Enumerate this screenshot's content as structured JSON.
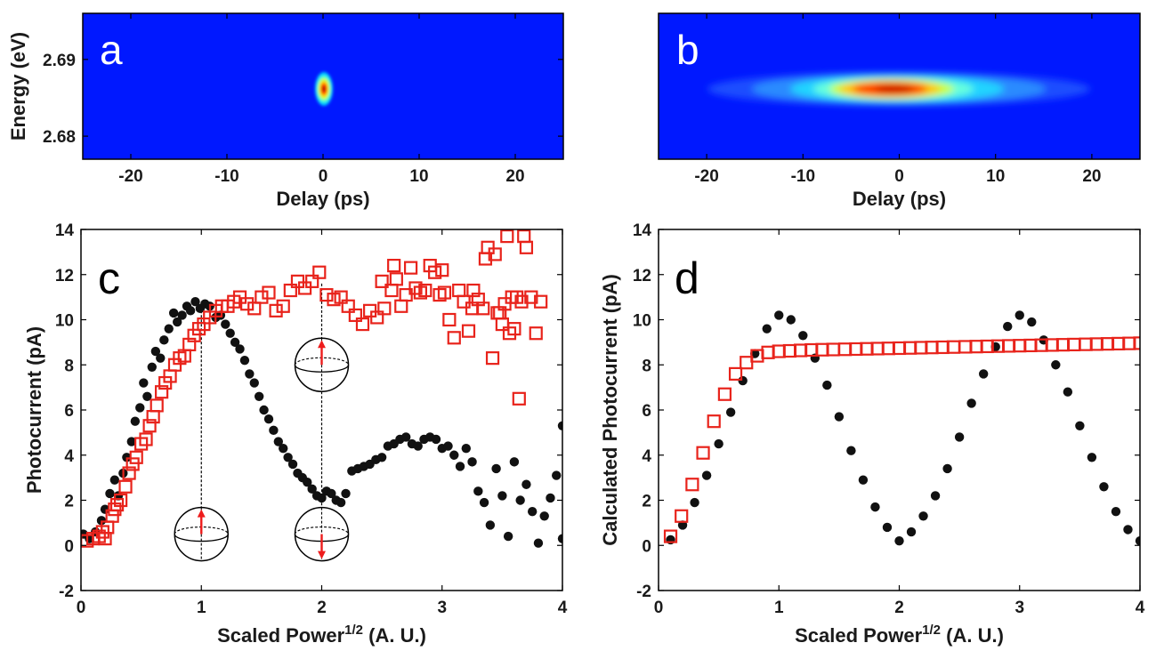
{
  "colors": {
    "dots": "#111111",
    "squares": "#e8231b",
    "arrow": "#ee1c1c",
    "heatmap_background": "#0018ff"
  },
  "chart_data": [
    {
      "panel": "a",
      "type": "heatmap",
      "xlabel": "Delay (ps)",
      "ylabel": "Energy (eV)",
      "xlim": [
        -25,
        25
      ],
      "ylim": [
        2.677,
        2.696
      ],
      "xticks": [
        "-20",
        "-10",
        "0",
        "10",
        "20"
      ],
      "yticks": [
        "2.68",
        "2.69"
      ],
      "spot": {
        "delay_center": 0,
        "energy_center": 2.686,
        "delay_width": 0.5,
        "energy_width": 0.0012
      }
    },
    {
      "panel": "b",
      "type": "heatmap",
      "xlabel": "Delay (ps)",
      "ylabel": "",
      "xlim": [
        -25,
        25
      ],
      "ylim": [
        2.677,
        2.696
      ],
      "xticks": [
        "-20",
        "-10",
        "0",
        "10",
        "20"
      ],
      "yticks": [],
      "spot": {
        "delay_center": 0,
        "energy_center": 2.686,
        "delay_width": 6,
        "energy_width": 0.0013
      }
    },
    {
      "panel": "c",
      "type": "scatter",
      "xlabel": "Scaled Power",
      "xlabel_sup": "1/2",
      "xlabel_suffix": " (A. U.)",
      "ylabel": "Photocurrent (pA)",
      "xlim": [
        0,
        4
      ],
      "ylim": [
        -2,
        14
      ],
      "xticks": [
        "0",
        "1",
        "2",
        "3",
        "4"
      ],
      "yticks": [
        "-2",
        "0",
        "2",
        "4",
        "6",
        "8",
        "10",
        "12",
        "14"
      ],
      "series": [
        {
          "name": "dots",
          "marker": "circle",
          "x": [
            0.02,
            0.07,
            0.12,
            0.17,
            0.2,
            0.24,
            0.28,
            0.31,
            0.35,
            0.38,
            0.42,
            0.45,
            0.49,
            0.52,
            0.55,
            0.59,
            0.62,
            0.66,
            0.69,
            0.73,
            0.77,
            0.8,
            0.84,
            0.88,
            0.91,
            0.95,
            0.99,
            1.03,
            1.07,
            1.12,
            1.16,
            1.2,
            1.24,
            1.28,
            1.32,
            1.36,
            1.4,
            1.44,
            1.48,
            1.52,
            1.56,
            1.6,
            1.64,
            1.68,
            1.72,
            1.76,
            1.8,
            1.84,
            1.88,
            1.92,
            1.96,
            2.0,
            2.04,
            2.08,
            2.12,
            2.16,
            2.2,
            2.25,
            2.3,
            2.35,
            2.4,
            2.45,
            2.5,
            2.55,
            2.6,
            2.65,
            2.7,
            2.75,
            2.8,
            2.85,
            2.9,
            2.95,
            3.0,
            3.05,
            3.1,
            3.15,
            3.2,
            3.25,
            3.3,
            3.35,
            3.4,
            3.45,
            3.5,
            3.55,
            3.6,
            3.65,
            3.7,
            3.75,
            3.8,
            3.85,
            3.9,
            3.95,
            4.0,
            4.0
          ],
          "y": [
            0.5,
            0.3,
            0.6,
            1.1,
            1.6,
            2.3,
            2.9,
            2.2,
            3.2,
            3.9,
            4.6,
            5.5,
            6.1,
            7.2,
            6.6,
            7.9,
            8.6,
            8.3,
            9.1,
            9.6,
            10.3,
            9.9,
            10.2,
            10.6,
            10.4,
            10.8,
            10.5,
            10.7,
            10.6,
            10.1,
            10.2,
            9.8,
            9.4,
            9.0,
            8.7,
            8.2,
            7.6,
            7.2,
            6.6,
            6.0,
            5.6,
            5.1,
            4.6,
            4.3,
            3.9,
            3.6,
            3.2,
            3.0,
            2.8,
            2.5,
            2.2,
            2.1,
            2.4,
            2.3,
            2.0,
            1.9,
            2.3,
            3.3,
            3.4,
            3.5,
            3.6,
            3.8,
            3.9,
            4.4,
            4.5,
            4.7,
            4.8,
            4.5,
            4.4,
            4.7,
            4.8,
            4.7,
            4.3,
            4.4,
            4.0,
            3.5,
            4.3,
            3.7,
            2.4,
            1.9,
            0.9,
            3.4,
            2.2,
            0.4,
            3.7,
            2.0,
            2.7,
            1.5,
            0.1,
            1.3,
            2.1,
            3.1,
            0.3,
            5.3
          ]
        },
        {
          "name": "squares",
          "marker": "square",
          "x": [
            0.05,
            0.1,
            0.15,
            0.18,
            0.2,
            0.22,
            0.26,
            0.28,
            0.3,
            0.33,
            0.37,
            0.4,
            0.43,
            0.46,
            0.5,
            0.54,
            0.57,
            0.6,
            0.63,
            0.67,
            0.7,
            0.74,
            0.78,
            0.82,
            0.86,
            0.9,
            0.94,
            0.98,
            1.02,
            1.07,
            1.12,
            1.17,
            1.22,
            1.27,
            1.32,
            1.38,
            1.44,
            1.5,
            1.56,
            1.62,
            1.68,
            1.74,
            1.8,
            1.86,
            1.92,
            1.98,
            2.04,
            2.1,
            2.16,
            2.22,
            2.28,
            2.34,
            2.4,
            2.46,
            2.52,
            2.58,
            2.62,
            2.66,
            2.7,
            2.74,
            2.78,
            2.82,
            2.86,
            2.9,
            2.94,
            2.98,
            3.02,
            3.06,
            3.1,
            3.14,
            3.18,
            3.22,
            3.26,
            3.3,
            3.34,
            3.38,
            3.42,
            3.46,
            3.5,
            3.54,
            3.58,
            3.62,
            3.66,
            3.7,
            3.74,
            3.78,
            3.82,
            2.5,
            2.6,
            3.0,
            3.25,
            3.36,
            3.44,
            3.48,
            3.52,
            3.56,
            3.6,
            3.64,
            3.68
          ],
          "y": [
            0.2,
            0.3,
            0.4,
            0.6,
            0.3,
            0.8,
            1.3,
            1.6,
            1.8,
            2.0,
            2.6,
            3.2,
            3.6,
            3.9,
            4.5,
            4.7,
            5.3,
            5.7,
            6.2,
            6.8,
            7.2,
            7.5,
            8.0,
            8.3,
            8.4,
            8.9,
            9.3,
            9.6,
            9.8,
            10.1,
            10.4,
            10.6,
            10.6,
            10.8,
            11.0,
            10.7,
            10.5,
            11.0,
            11.2,
            10.4,
            10.6,
            11.3,
            11.7,
            11.4,
            11.7,
            12.1,
            11.1,
            10.9,
            11.0,
            10.6,
            10.2,
            9.8,
            10.4,
            10.1,
            10.5,
            11.3,
            11.8,
            10.6,
            11.1,
            12.3,
            11.4,
            11.2,
            11.3,
            12.4,
            12.1,
            11.1,
            11.2,
            10.0,
            9.2,
            11.3,
            10.8,
            9.5,
            11.3,
            10.9,
            10.5,
            13.2,
            8.3,
            10.3,
            9.8,
            13.7,
            11.0,
            11.0,
            10.8,
            13.2,
            11.0,
            9.4,
            10.8,
            11.7,
            12.4,
            12.2,
            10.5,
            12.7,
            12.9,
            10.3,
            10.7,
            9.4,
            9.6,
            6.5,
            13.7
          ]
        }
      ],
      "insets": [
        {
          "x": 1,
          "arrow": "up"
        },
        {
          "x": 2,
          "arrow": "up"
        },
        {
          "x": 2,
          "arrow": "down"
        }
      ]
    },
    {
      "panel": "d",
      "type": "scatter",
      "xlabel": "Scaled Power",
      "xlabel_sup": "1/2",
      "xlabel_suffix": " (A. U.)",
      "ylabel": "Calculated Photocurrent (pA)",
      "xlim": [
        0,
        4
      ],
      "ylim": [
        -2,
        14
      ],
      "xticks": [
        "0",
        "1",
        "2",
        "3",
        "4"
      ],
      "yticks": [
        "-2",
        "0",
        "2",
        "4",
        "6",
        "8",
        "10",
        "12",
        "14"
      ],
      "series": [
        {
          "name": "dots",
          "marker": "circle",
          "x": [
            0.1,
            0.2,
            0.3,
            0.4,
            0.5,
            0.6,
            0.7,
            0.8,
            0.9,
            1.0,
            1.1,
            1.2,
            1.3,
            1.4,
            1.5,
            1.6,
            1.7,
            1.8,
            1.9,
            2.0,
            2.1,
            2.2,
            2.3,
            2.4,
            2.5,
            2.6,
            2.7,
            2.8,
            2.9,
            3.0,
            3.1,
            3.2,
            3.3,
            3.4,
            3.5,
            3.6,
            3.7,
            3.8,
            3.9,
            4.0
          ],
          "y": [
            0.25,
            0.9,
            1.9,
            3.1,
            4.5,
            5.9,
            7.3,
            8.5,
            9.6,
            10.2,
            10.0,
            9.3,
            8.3,
            7.1,
            5.7,
            4.2,
            2.9,
            1.7,
            0.8,
            0.2,
            0.6,
            1.3,
            2.2,
            3.4,
            4.8,
            6.3,
            7.6,
            8.8,
            9.7,
            10.2,
            9.9,
            9.1,
            8.0,
            6.8,
            5.3,
            3.9,
            2.6,
            1.5,
            0.7,
            0.2
          ]
        },
        {
          "name": "squares",
          "marker": "square",
          "x": [
            0.1,
            0.19,
            0.28,
            0.37,
            0.46,
            0.55,
            0.64,
            0.73,
            0.82,
            0.91,
            1.0,
            1.09,
            1.18,
            1.27,
            1.36,
            1.45,
            1.55,
            1.64,
            1.73,
            1.82,
            1.91,
            2.0,
            2.09,
            2.18,
            2.27,
            2.36,
            2.45,
            2.55,
            2.64,
            2.73,
            2.82,
            2.91,
            3.0,
            3.09,
            3.18,
            3.27,
            3.36,
            3.45,
            3.55,
            3.64,
            3.73,
            3.82,
            3.91,
            4.0
          ],
          "y": [
            0.4,
            1.3,
            2.7,
            4.1,
            5.5,
            6.7,
            7.6,
            8.1,
            8.4,
            8.55,
            8.6,
            8.62,
            8.64,
            8.66,
            8.67,
            8.68,
            8.69,
            8.7,
            8.71,
            8.72,
            8.73,
            8.74,
            8.75,
            8.76,
            8.77,
            8.78,
            8.79,
            8.8,
            8.81,
            8.82,
            8.83,
            8.84,
            8.85,
            8.86,
            8.87,
            8.88,
            8.89,
            8.9,
            8.91,
            8.92,
            8.93,
            8.94,
            8.95,
            8.96
          ]
        }
      ]
    }
  ]
}
